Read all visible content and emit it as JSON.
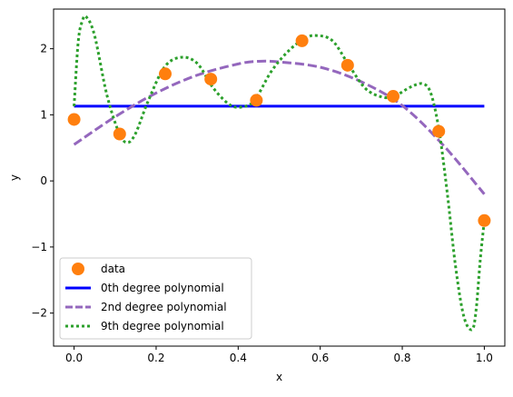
{
  "chart_data": {
    "type": "line",
    "xlabel": "x",
    "ylabel": "y",
    "xlim": [
      -0.05,
      1.05
    ],
    "ylim": [
      -2.5,
      2.6
    ],
    "xticks": [
      0.0,
      0.2,
      0.4,
      0.6,
      0.8,
      1.0
    ],
    "xtick_labels": [
      "0.0",
      "0.2",
      "0.4",
      "0.6",
      "0.8",
      "1.0"
    ],
    "yticks": [
      -2,
      -1,
      0,
      1,
      2
    ],
    "ytick_labels": [
      "−2",
      "−1",
      "0",
      "1",
      "2"
    ],
    "grid": false,
    "legend_position": "lower-left",
    "scatter": {
      "name": "data",
      "color": "#ff7f0e",
      "x": [
        0.0,
        0.1111,
        0.2222,
        0.3333,
        0.4444,
        0.5556,
        0.6667,
        0.7778,
        0.8889,
        1.0
      ],
      "y": [
        0.93,
        0.71,
        1.62,
        1.54,
        1.22,
        2.12,
        1.75,
        1.28,
        0.75,
        -0.6
      ]
    },
    "series": [
      {
        "name": "0th degree polynomial",
        "color": "#0000ff",
        "style": "solid",
        "x": [
          0.0,
          1.0
        ],
        "y": [
          1.13,
          1.13
        ]
      },
      {
        "name": "2nd degree polynomial",
        "color": "#9467bd",
        "style": "dashed",
        "x": [
          0.0,
          0.1,
          0.2,
          0.3,
          0.4,
          0.45,
          0.5,
          0.6,
          0.7,
          0.8,
          0.9,
          1.0
        ],
        "y": [
          0.55,
          0.97,
          1.33,
          1.6,
          1.77,
          1.81,
          1.8,
          1.72,
          1.5,
          1.14,
          0.54,
          -0.2
        ]
      },
      {
        "name": "9th degree polynomial",
        "color": "#2ca02c",
        "style": "dotted",
        "x": [
          0.0,
          0.01,
          0.02,
          0.03,
          0.05,
          0.08,
          0.11,
          0.13,
          0.15,
          0.18,
          0.22,
          0.26,
          0.3,
          0.34,
          0.38,
          0.41,
          0.44,
          0.48,
          0.52,
          0.56,
          0.59,
          0.63,
          0.67,
          0.71,
          0.75,
          0.78,
          0.82,
          0.85,
          0.87,
          0.89,
          0.91,
          0.93,
          0.95,
          0.97,
          0.98,
          0.99,
          1.0
        ],
        "y": [
          1.13,
          2.1,
          2.42,
          2.48,
          2.2,
          1.3,
          0.72,
          0.58,
          0.72,
          1.2,
          1.72,
          1.87,
          1.78,
          1.4,
          1.15,
          1.12,
          1.22,
          1.65,
          1.95,
          2.15,
          2.2,
          2.12,
          1.75,
          1.4,
          1.27,
          1.28,
          1.42,
          1.47,
          1.32,
          0.75,
          -0.2,
          -1.3,
          -2.05,
          -2.25,
          -1.95,
          -1.2,
          -0.6
        ]
      }
    ],
    "legend": [
      "data",
      "0th degree polynomial",
      "2nd degree polynomial",
      "9th degree polynomial"
    ]
  }
}
